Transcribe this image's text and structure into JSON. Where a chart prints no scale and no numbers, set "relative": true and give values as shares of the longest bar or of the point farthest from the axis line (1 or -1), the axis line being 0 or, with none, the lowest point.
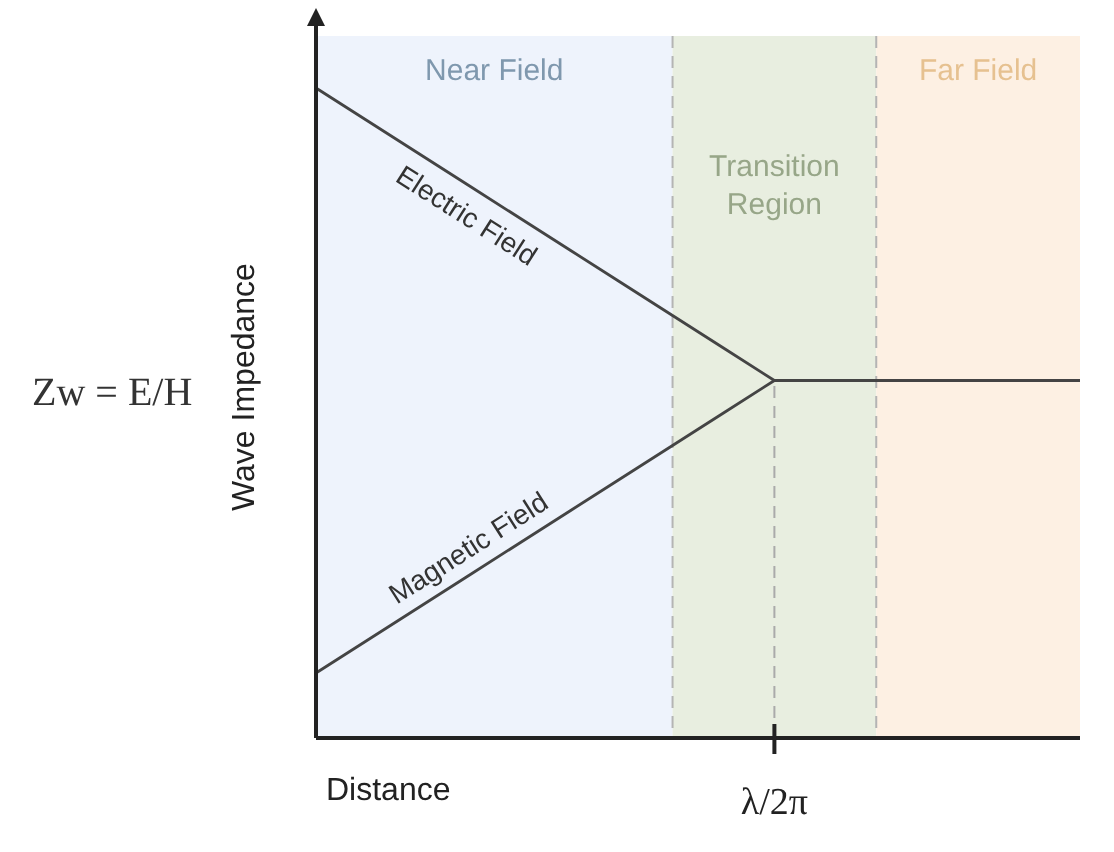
{
  "chart_data": {
    "type": "line",
    "relative": true,
    "xlabel": "Distance",
    "ylabel": "Wave Impedance",
    "annotations": [
      "Zw = E/H",
      "Near Field",
      "Transition Region",
      "Far Field",
      "λ/2π"
    ],
    "categories": [
      null,
      null,
      null,
      null,
      null,
      null,
      null,
      null,
      null,
      null,
      null,
      null,
      null,
      null,
      null,
      null
    ],
    "series": [
      {
        "name": "Electric Field",
        "color": "#444444",
        "values": [
          1,
          0.95,
          0.9,
          0.85,
          0.8,
          0.75,
          0.7,
          0.65,
          0.6,
          0.55,
          0.55,
          0.55,
          0.55,
          0.55,
          0.55,
          0.55
        ]
      },
      {
        "name": "Magnetic Field",
        "color": "#444444",
        "values": [
          0.1,
          0.15,
          0.2,
          0.25,
          0.3,
          0.35,
          0.4,
          0.45,
          0.5,
          0.55,
          null,
          null,
          null,
          null,
          null,
          null
        ]
      }
    ]
  }
}
